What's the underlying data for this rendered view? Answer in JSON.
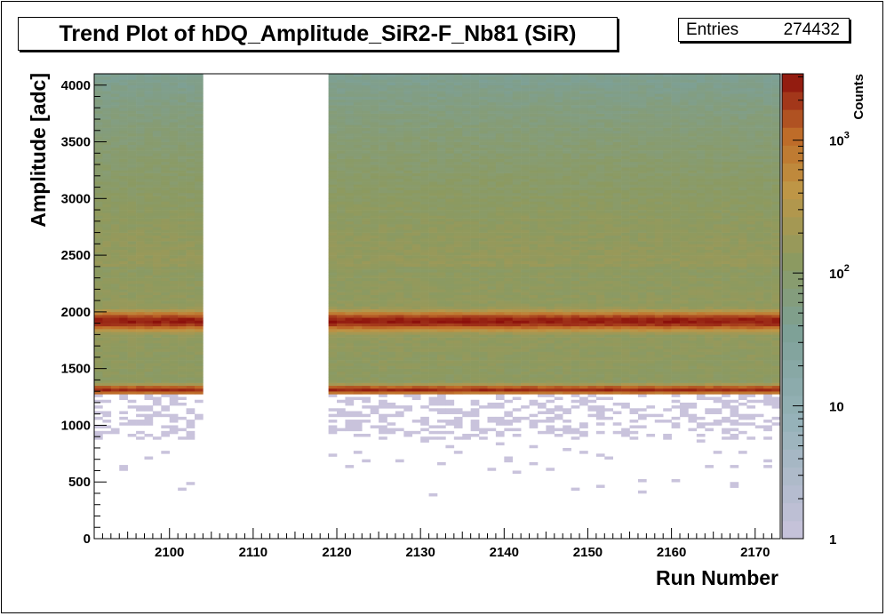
{
  "chart_data": {
    "type": "heatmap",
    "title": "Trend Plot of hDQ_Amplitude_SiR2-F_Nb81 (SiR)",
    "stats": {
      "label": "Entries",
      "value": "274432"
    },
    "xlabel": "Run Number",
    "ylabel": "Amplitude [adc]",
    "zlabel": "Counts",
    "xlim": [
      2091,
      2173
    ],
    "ylim": [
      0,
      4100
    ],
    "x_ticks": [
      "2100",
      "2110",
      "2120",
      "2130",
      "2140",
      "2150",
      "2160",
      "2170"
    ],
    "y_ticks": [
      "0",
      "500",
      "1000",
      "1500",
      "2000",
      "2500",
      "3000",
      "3500",
      "4000"
    ],
    "z_scale": "log",
    "z_ticks": [
      "1",
      "10",
      "10^2",
      "10^3"
    ],
    "colors": {
      "low": "#c9c3dc",
      "mid": "#7fa39c",
      "midhigh": "#8c9a5a",
      "high": "#c0702a",
      "peak": "#8b0e0a"
    },
    "run_ranges_with_data": [
      [
        2091,
        2104
      ],
      [
        2119,
        2173
      ]
    ],
    "features": [
      {
        "name": "peak band",
        "amplitude": 1920,
        "counts_level": "1e3-3e3"
      },
      {
        "name": "low-edge band",
        "amplitude": 1310,
        "counts_level": "1e3-3e3"
      },
      {
        "name": "plateau",
        "amplitude_range": [
          1300,
          4100
        ],
        "counts_level": "1e2"
      },
      {
        "name": "sparse tail",
        "amplitude_range": [
          400,
          1260
        ],
        "counts_level": "1-10"
      }
    ]
  }
}
